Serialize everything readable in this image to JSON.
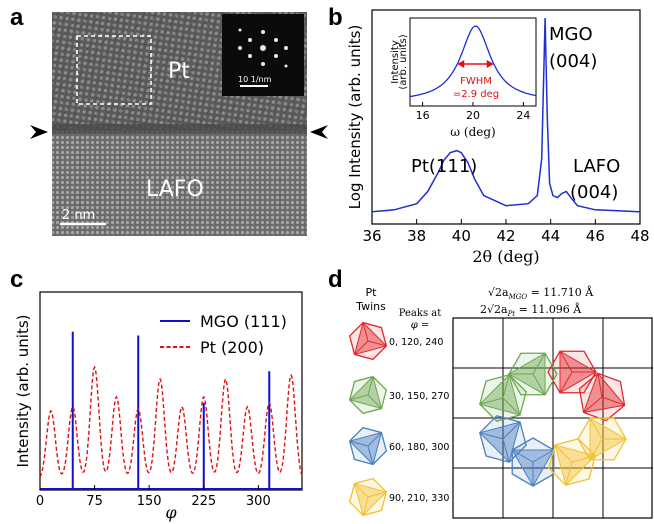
{
  "panels": {
    "a": {
      "letter": "a",
      "label_top": "Pt",
      "label_bottom": "LAFO",
      "scale_bar": "2 nm",
      "inset_scale": "10 1/nm"
    },
    "b": {
      "letter": "b"
    },
    "c": {
      "letter": "c"
    },
    "d": {
      "letter": "d",
      "col_title_1": "Pt",
      "col_title_2": "Twins",
      "col_title_3": "Peaks at",
      "col_title_4": "φ =",
      "eq1": "√2a",
      "eq1_sub": "MGO",
      "eq1_val": " = 11.710 Å",
      "eq2": "2√2a",
      "eq2_sub": "Pt",
      "eq2_val": " = 11.096 Å",
      "twins": [
        {
          "label": "0, 120, 240",
          "color": "#e3262b"
        },
        {
          "label": "30, 150, 270",
          "color": "#6aa84f"
        },
        {
          "label": "60, 180, 300",
          "color": "#4a7fc1"
        },
        {
          "label": "90, 210, 330",
          "color": "#f1c232"
        }
      ]
    }
  },
  "chart_data": [
    {
      "panel": "b",
      "type": "line",
      "xlabel": "2θ (deg)",
      "ylabel": "Log Intensity (arb. units)",
      "xlim": [
        36,
        48
      ],
      "xticks": [
        "36",
        "38",
        "40",
        "42",
        "44",
        "46",
        "48"
      ],
      "color": "#1f2fd0",
      "series": [
        {
          "x": [
            36,
            37,
            38,
            38.5,
            39,
            39.2,
            39.5,
            39.8,
            40,
            40.3,
            40.6,
            41,
            42,
            43,
            43.4,
            43.6,
            43.75,
            43.85,
            43.95,
            44.1,
            44.3,
            44.5,
            44.7,
            44.9,
            45.2,
            46,
            47,
            48
          ],
          "y": [
            0.04,
            0.05,
            0.08,
            0.14,
            0.24,
            0.29,
            0.33,
            0.34,
            0.33,
            0.28,
            0.2,
            0.12,
            0.07,
            0.08,
            0.12,
            0.3,
            0.99,
            0.5,
            0.18,
            0.12,
            0.11,
            0.13,
            0.14,
            0.11,
            0.07,
            0.05,
            0.045,
            0.04
          ]
        }
      ],
      "annotations": [
        {
          "text": "MGO",
          "text2": "(004)"
        },
        {
          "text": "Pt(111)"
        },
        {
          "text": "LAFO",
          "text2": "(004)"
        }
      ],
      "inset": {
        "type": "line",
        "xlabel": "ω (deg)",
        "ylabel_line1": "Intensity",
        "ylabel_line2": "(arb. units)",
        "xlim": [
          15,
          25
        ],
        "xticks": [
          "16",
          "20",
          "24"
        ],
        "center": 20.2,
        "fwhm": 2.9,
        "annotation_1": "FWHM",
        "annotation_2": "=2.9 deg",
        "annotation_color": "#e01010"
      }
    },
    {
      "panel": "c",
      "type": "line",
      "xlabel": "φ",
      "ylabel": "Intensity (arb. units)",
      "xlim": [
        0,
        360
      ],
      "xticks": [
        "0",
        "75",
        "150",
        "225",
        "300"
      ],
      "ylim": [
        0,
        1
      ],
      "series": [
        {
          "name": "MGO (111)",
          "color": "#1010d0",
          "style": "solid",
          "peaks_x": [
            45,
            135,
            225,
            315
          ],
          "peaks_y": [
            0.8,
            0.78,
            0.44,
            0.6
          ]
        },
        {
          "name": "Pt (200)",
          "color": "#e01010",
          "style": "dashed",
          "peaks_x": [
            15,
            45,
            75,
            105,
            135,
            165,
            195,
            225,
            255,
            285,
            315,
            345
          ],
          "peaks_y": [
            0.4,
            0.42,
            0.62,
            0.47,
            0.41,
            0.56,
            0.42,
            0.47,
            0.56,
            0.42,
            0.44,
            0.58
          ],
          "baseline": 0.05
        }
      ]
    }
  ]
}
